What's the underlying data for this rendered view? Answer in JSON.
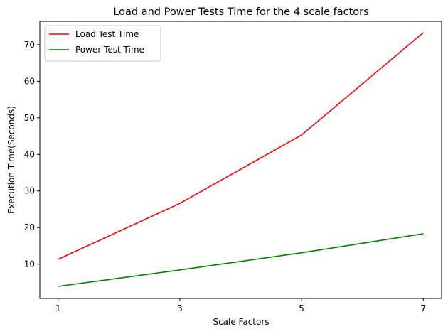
{
  "chart_data": {
    "type": "line",
    "title": "Load and Power Tests Time for the 4 scale factors",
    "xlabel": "Scale Factors",
    "ylabel": "Execution Time(Seconds)",
    "x": [
      1,
      3,
      5,
      7
    ],
    "xticks": [
      "1",
      "3",
      "5",
      "7"
    ],
    "yticks": [
      "10",
      "20",
      "30",
      "40",
      "50",
      "60",
      "70"
    ],
    "xlim": [
      0.7,
      7.3
    ],
    "ylim": [
      0.6,
      76.4
    ],
    "grid": false,
    "legend_position": "top-left",
    "series": [
      {
        "name": "Load Test Time",
        "color": "#ff0000",
        "values": [
          11.3,
          26.6,
          45.3,
          73.3
        ]
      },
      {
        "name": "Power Test Time",
        "color": "#008000",
        "values": [
          3.9,
          8.4,
          13.1,
          18.3
        ]
      }
    ]
  }
}
